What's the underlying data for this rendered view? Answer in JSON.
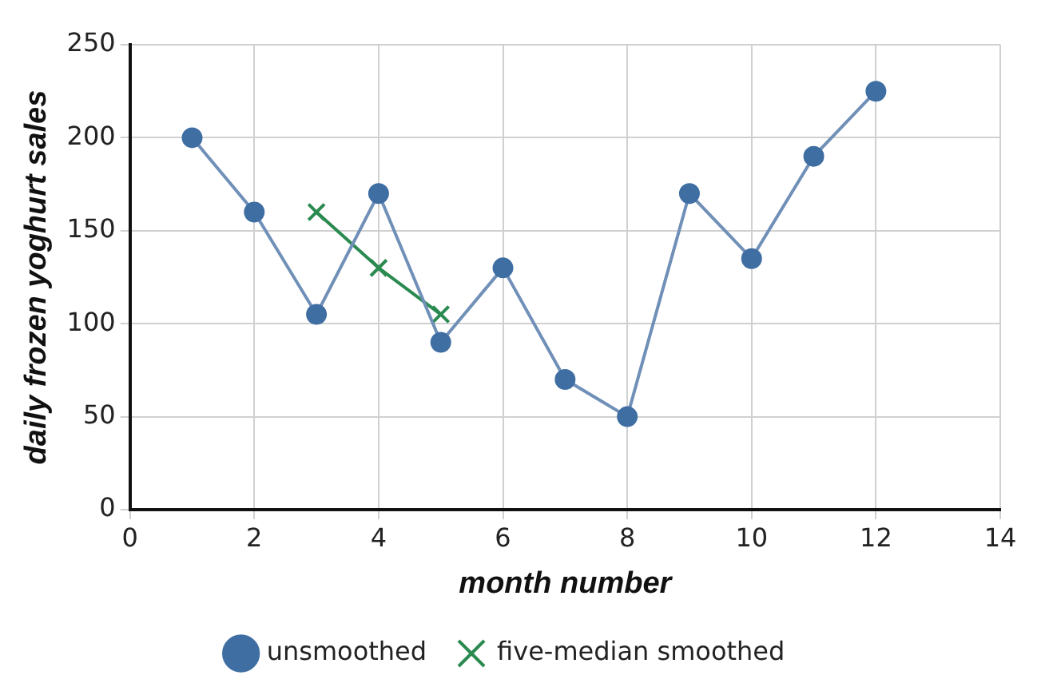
{
  "chart_data": {
    "type": "line",
    "xlabel": "month number",
    "ylabel": "daily frozen yoghurt sales",
    "xlim": [
      0,
      14
    ],
    "xticks": [
      0,
      2,
      4,
      6,
      8,
      10,
      12,
      14
    ],
    "ylim": [
      0,
      250
    ],
    "yticks": [
      0,
      50,
      100,
      150,
      200,
      250
    ],
    "grid": true,
    "legend": "bottom",
    "series": [
      {
        "name": "unsmoothed",
        "color": "#7090b8",
        "marker": "circle",
        "x": [
          1,
          2,
          3,
          4,
          5,
          6,
          7,
          8,
          9,
          10,
          11,
          12
        ],
        "values": [
          200,
          160,
          105,
          170,
          90,
          130,
          70,
          50,
          170,
          135,
          190,
          225
        ]
      },
      {
        "name": "five-median smoothed",
        "color": "#2a8a50",
        "marker": "cross",
        "x": [
          3,
          4,
          5
        ],
        "values": [
          160,
          130,
          105
        ]
      }
    ]
  }
}
